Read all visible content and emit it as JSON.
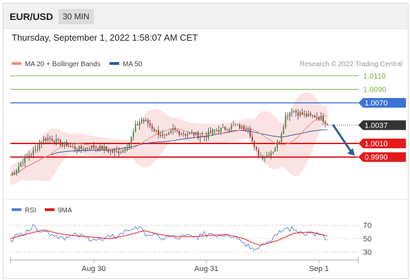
{
  "header": {
    "symbol": "EUR/USD",
    "interval": "30 MIN",
    "datetime": "Thursday, September 1, 2022 1:58:07 AM CET"
  },
  "legend": {
    "items": [
      {
        "label": "MA 20 + Bollinger Bands",
        "color": "#f28b82"
      },
      {
        "label": "MA 50",
        "color": "#2f5d95"
      }
    ],
    "attribution": "Research © 2022 Trading Central"
  },
  "colors": {
    "resistance_green": "#7cb342",
    "pivot_blue": "#3b73d6",
    "support_red": "#e31b1b",
    "last_price_bg": "#333333",
    "up_candle": "#3d8b3d",
    "down_candle": "#b03030",
    "rsi": "#5b7fd6",
    "rsi_ma": "#e31b1b",
    "bollinger_fill": "#fbdada"
  },
  "chart_data": [
    {
      "type": "candlestick",
      "yaxis_labels": [
        "1.0110",
        "1.0090",
        "1.0070",
        "1.0037",
        "1.0010",
        "0.9990"
      ],
      "ylim": [
        0.995,
        1.012
      ],
      "x_tick_labels": [
        "Aug 30",
        "Aug 31",
        "Sep 1"
      ],
      "levels": [
        {
          "value": 1.011,
          "label": "1.0110",
          "kind": "resistance"
        },
        {
          "value": 1.009,
          "label": "1.0090",
          "kind": "resistance"
        },
        {
          "value": 1.007,
          "label": "1.0070",
          "kind": "pivot"
        },
        {
          "value": 1.001,
          "label": "1.0010",
          "kind": "support"
        },
        {
          "value": 0.999,
          "label": "0.9990",
          "kind": "support"
        }
      ],
      "last_price": {
        "value": 1.0037,
        "label": "1.0037"
      },
      "close_path": [
        [
          0,
          0.9963
        ],
        [
          3,
          0.9972
        ],
        [
          6,
          0.9985
        ],
        [
          9,
          0.9993
        ],
        [
          12,
          1.0
        ],
        [
          15,
          1.0015
        ],
        [
          18,
          1.0018
        ],
        [
          21,
          1.0015
        ],
        [
          24,
          1.001
        ],
        [
          27,
          1.0008
        ],
        [
          30,
          1.0004
        ],
        [
          33,
          1.0002
        ],
        [
          36,
          1.0003
        ],
        [
          39,
          1.0005
        ],
        [
          42,
          1.0004
        ],
        [
          45,
          1.0003
        ],
        [
          48,
          0.9998
        ],
        [
          51,
          0.9997
        ],
        [
          54,
          1.0
        ],
        [
          57,
          1.001
        ],
        [
          60,
          1.0035
        ],
        [
          63,
          1.0045
        ],
        [
          66,
          1.004
        ],
        [
          69,
          1.003
        ],
        [
          72,
          1.0023
        ],
        [
          75,
          1.0019
        ],
        [
          78,
          1.003
        ],
        [
          81,
          1.0027
        ],
        [
          84,
          1.0024
        ],
        [
          87,
          1.0025
        ],
        [
          90,
          1.0022
        ],
        [
          93,
          1.002
        ],
        [
          96,
          1.0026
        ],
        [
          99,
          1.003
        ],
        [
          102,
          1.0031
        ],
        [
          105,
          1.0034
        ],
        [
          108,
          1.0036
        ],
        [
          111,
          1.0033
        ],
        [
          114,
          1.0035
        ],
        [
          117,
          1.0002
        ],
        [
          120,
          0.999
        ],
        [
          123,
          0.9993
        ],
        [
          126,
          1.0
        ],
        [
          129,
          1.0015
        ],
        [
          132,
          1.005
        ],
        [
          135,
          1.006
        ],
        [
          138,
          1.0055
        ],
        [
          141,
          1.0052
        ],
        [
          144,
          1.005
        ],
        [
          147,
          1.005
        ],
        [
          150,
          1.0045
        ],
        [
          152,
          1.004
        ]
      ],
      "projection": {
        "from": 1.004,
        "to": 0.999
      }
    },
    {
      "type": "line",
      "legend": [
        {
          "label": "RSI",
          "color": "#5b7fd6"
        },
        {
          "label": "9MA",
          "color": "#e31b1b"
        }
      ],
      "yaxis_labels": [
        "70",
        "50",
        "30"
      ],
      "ylim": [
        20,
        80
      ],
      "rsi": [
        [
          0,
          48
        ],
        [
          4,
          55
        ],
        [
          8,
          63
        ],
        [
          12,
          68
        ],
        [
          16,
          61
        ],
        [
          20,
          57
        ],
        [
          24,
          53
        ],
        [
          28,
          52
        ],
        [
          32,
          55
        ],
        [
          36,
          52
        ],
        [
          40,
          50
        ],
        [
          44,
          47
        ],
        [
          48,
          52
        ],
        [
          52,
          55
        ],
        [
          56,
          62
        ],
        [
          60,
          68
        ],
        [
          64,
          60
        ],
        [
          68,
          55
        ],
        [
          72,
          50
        ],
        [
          76,
          53
        ],
        [
          80,
          50
        ],
        [
          84,
          54
        ],
        [
          88,
          52
        ],
        [
          92,
          55
        ],
        [
          96,
          58
        ],
        [
          100,
          55
        ],
        [
          104,
          57
        ],
        [
          108,
          54
        ],
        [
          112,
          44
        ],
        [
          116,
          36
        ],
        [
          120,
          40
        ],
        [
          124,
          46
        ],
        [
          128,
          55
        ],
        [
          132,
          66
        ],
        [
          136,
          63
        ],
        [
          140,
          60
        ],
        [
          144,
          58
        ],
        [
          148,
          56
        ],
        [
          152,
          48
        ]
      ],
      "ma9": [
        [
          0,
          50
        ],
        [
          8,
          57
        ],
        [
          16,
          63
        ],
        [
          24,
          57
        ],
        [
          32,
          54
        ],
        [
          40,
          52
        ],
        [
          48,
          50
        ],
        [
          56,
          55
        ],
        [
          64,
          62
        ],
        [
          72,
          56
        ],
        [
          80,
          53
        ],
        [
          88,
          53
        ],
        [
          96,
          55
        ],
        [
          104,
          56
        ],
        [
          112,
          50
        ],
        [
          116,
          44
        ],
        [
          120,
          40
        ],
        [
          128,
          47
        ],
        [
          136,
          58
        ],
        [
          144,
          60
        ],
        [
          152,
          54
        ]
      ]
    }
  ]
}
